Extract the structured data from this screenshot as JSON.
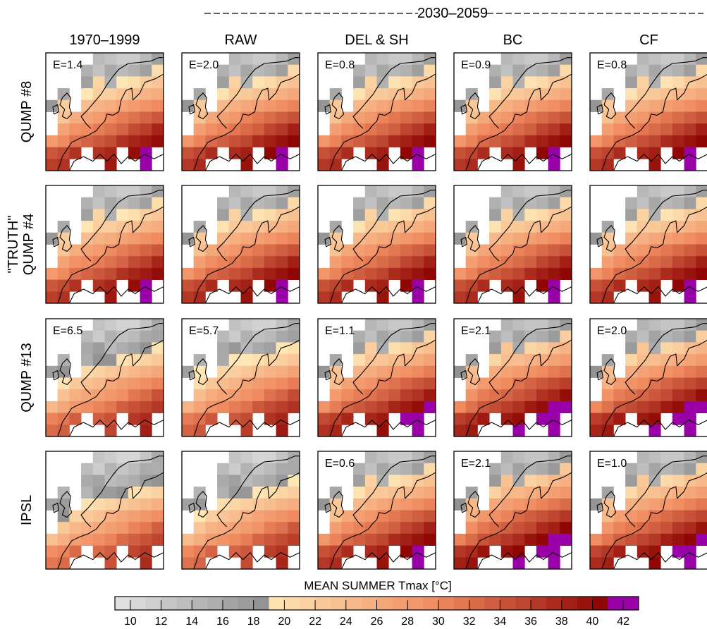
{
  "chart_data": {
    "type": "heatmap",
    "period_header": "2030–2059",
    "columns": [
      "1970–1999",
      "RAW",
      "DEL & SH",
      "BC",
      "CF"
    ],
    "rows": [
      {
        "name": "QUMP #8",
        "errors": [
          "E=1.4",
          "E=2.0",
          "E=0.8",
          "E=0.9",
          "E=0.8"
        ],
        "warm_shift": [
          0,
          0.5,
          0.5,
          0.5,
          0.5
        ]
      },
      {
        "name": "\"TRUTH\"\nQUMP #4",
        "errors": [
          "",
          "",
          "",
          "",
          ""
        ],
        "warm_shift": [
          0,
          0.5,
          0.5,
          0.5,
          0.5
        ]
      },
      {
        "name": "QUMP #13",
        "errors": [
          "E=6.5",
          "E=5.7",
          "E=1.1",
          "E=2.1",
          "E=2.0"
        ],
        "warm_shift": [
          -3.5,
          -3.0,
          1.0,
          2.0,
          2.0
        ]
      },
      {
        "name": "IPSL",
        "errors": [
          "",
          "",
          "E=0.6",
          "E=2.1",
          "E=1.0"
        ],
        "warm_shift": [
          -4.5,
          -4.0,
          0.5,
          2.5,
          1.5
        ]
      }
    ],
    "colorbar": {
      "title": "MEAN SUMMER Tmax  [°C]",
      "min": 9,
      "max": 43,
      "step": 1,
      "tick_labels": [
        "10",
        "12",
        "14",
        "16",
        "18",
        "20",
        "22",
        "24",
        "26",
        "28",
        "30",
        "32",
        "34",
        "36",
        "38",
        "40",
        "42"
      ],
      "tick_values": [
        10,
        12,
        14,
        16,
        18,
        20,
        22,
        24,
        26,
        28,
        30,
        32,
        34,
        36,
        38,
        40,
        42
      ]
    },
    "colors": {
      "gray_low": "#e4e4e4",
      "gray_high": "#8f8f8f",
      "warm_low": "#fee7b5",
      "warm_mid": "#f08a5f",
      "warm_high": "#8b0000",
      "extreme": "#9a00a8"
    }
  }
}
